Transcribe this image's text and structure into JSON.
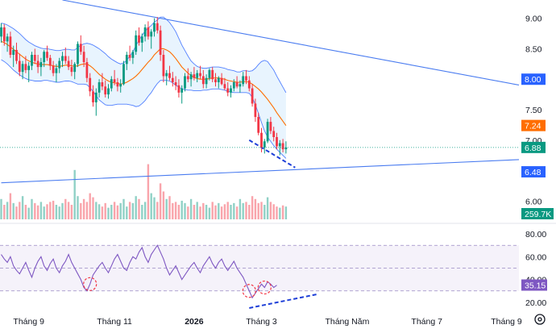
{
  "chart_data": [
    {
      "type": "candlestick",
      "pane": "price",
      "title": "",
      "y_ticks": [
        "9.00",
        "8.50",
        "8.00",
        "7.50",
        "7.00",
        "6.00"
      ],
      "y_tick_values": [
        9.0,
        8.5,
        8.0,
        7.5,
        7.0,
        6.0
      ],
      "ylim": [
        5.7,
        9.3
      ],
      "grid": false,
      "price_tags": [
        {
          "label": "8.00",
          "value": 8.0,
          "color": "#2962ff",
          "meaning": "descending trendline level"
        },
        {
          "label": "7.24",
          "value": 7.24,
          "color": "#ff6d00",
          "meaning": "moving average (basis)"
        },
        {
          "label": "6.88",
          "value": 6.88,
          "color": "#089981",
          "meaning": "last price"
        },
        {
          "label": "6.48",
          "value": 6.48,
          "color": "#2962ff",
          "meaning": "ascending trendline level"
        },
        {
          "label": "259.7K",
          "value": 259700,
          "color": "#089981",
          "meaning": "volume"
        }
      ],
      "candles_ohlc": [
        [
          8.7,
          8.92,
          8.6,
          8.85
        ],
        [
          8.85,
          8.9,
          8.55,
          8.62
        ],
        [
          8.62,
          8.75,
          8.45,
          8.7
        ],
        [
          8.7,
          8.78,
          8.35,
          8.4
        ],
        [
          8.4,
          8.55,
          8.2,
          8.48
        ],
        [
          8.48,
          8.6,
          8.25,
          8.3
        ],
        [
          8.3,
          8.42,
          8.05,
          8.12
        ],
        [
          8.12,
          8.3,
          8.0,
          8.25
        ],
        [
          8.25,
          8.38,
          8.1,
          8.15
        ],
        [
          8.15,
          8.28,
          7.95,
          8.22
        ],
        [
          8.22,
          8.45,
          8.15,
          8.4
        ],
        [
          8.4,
          8.5,
          8.25,
          8.3
        ],
        [
          8.3,
          8.4,
          8.1,
          8.2
        ],
        [
          8.2,
          8.35,
          8.05,
          8.28
        ],
        [
          8.28,
          8.48,
          8.2,
          8.45
        ],
        [
          8.45,
          8.55,
          8.3,
          8.35
        ],
        [
          8.35,
          8.4,
          8.15,
          8.22
        ],
        [
          8.22,
          8.3,
          8.05,
          8.1
        ],
        [
          8.1,
          8.25,
          7.95,
          8.18
        ],
        [
          8.18,
          8.35,
          8.1,
          8.3
        ],
        [
          8.3,
          8.45,
          8.2,
          8.38
        ],
        [
          8.38,
          8.52,
          8.25,
          8.3
        ],
        [
          8.3,
          8.38,
          8.15,
          8.2
        ],
        [
          8.2,
          8.32,
          8.05,
          8.12
        ],
        [
          8.12,
          8.28,
          8.0,
          8.25
        ],
        [
          8.25,
          8.62,
          8.2,
          8.58
        ],
        [
          8.58,
          8.72,
          8.4,
          8.45
        ],
        [
          8.45,
          8.55,
          8.2,
          8.28
        ],
        [
          8.28,
          8.35,
          7.95,
          8.02
        ],
        [
          8.02,
          8.1,
          7.72,
          7.8
        ],
        [
          7.8,
          7.9,
          7.55,
          7.62
        ],
        [
          7.62,
          7.85,
          7.4,
          7.78
        ],
        [
          7.78,
          8.0,
          7.7,
          7.95
        ],
        [
          7.95,
          8.1,
          7.82,
          7.88
        ],
        [
          7.88,
          7.98,
          7.7,
          7.75
        ],
        [
          7.75,
          7.92,
          7.68,
          7.85
        ],
        [
          7.85,
          8.05,
          7.8,
          8.0
        ],
        [
          8.0,
          8.15,
          7.9,
          7.95
        ],
        [
          7.95,
          8.02,
          7.8,
          7.88
        ],
        [
          7.88,
          8.0,
          7.78,
          7.92
        ],
        [
          7.92,
          8.3,
          7.9,
          8.25
        ],
        [
          8.25,
          8.45,
          8.15,
          8.4
        ],
        [
          8.4,
          8.55,
          8.3,
          8.35
        ],
        [
          8.35,
          8.48,
          8.25,
          8.45
        ],
        [
          8.45,
          8.8,
          8.4,
          8.72
        ],
        [
          8.72,
          8.85,
          8.55,
          8.6
        ],
        [
          8.6,
          8.75,
          8.45,
          8.7
        ],
        [
          8.7,
          8.9,
          8.62,
          8.85
        ],
        [
          8.85,
          8.95,
          8.65,
          8.7
        ],
        [
          8.7,
          8.82,
          8.5,
          8.78
        ],
        [
          8.78,
          9.0,
          8.7,
          8.92
        ],
        [
          8.92,
          9.02,
          8.75,
          8.8
        ],
        [
          8.8,
          8.88,
          8.3,
          8.4
        ],
        [
          8.4,
          8.48,
          7.95,
          8.05
        ],
        [
          8.05,
          8.15,
          7.9,
          8.1
        ],
        [
          8.1,
          8.22,
          7.98,
          8.02
        ],
        [
          8.02,
          8.12,
          7.88,
          7.95
        ],
        [
          7.95,
          8.05,
          7.82,
          7.9
        ],
        [
          7.9,
          8.0,
          7.7,
          7.78
        ],
        [
          7.78,
          7.9,
          7.6,
          7.85
        ],
        [
          7.85,
          8.1,
          7.8,
          8.05
        ],
        [
          8.05,
          8.18,
          7.95,
          8.0
        ],
        [
          8.0,
          8.12,
          7.88,
          8.08
        ],
        [
          8.08,
          8.2,
          7.98,
          8.02
        ],
        [
          8.02,
          8.15,
          7.95,
          8.1
        ],
        [
          8.1,
          8.22,
          8.0,
          8.05
        ],
        [
          8.05,
          8.15,
          7.85,
          7.92
        ],
        [
          7.92,
          8.08,
          7.85,
          8.02
        ],
        [
          8.02,
          8.18,
          7.98,
          8.15
        ],
        [
          8.15,
          8.2,
          7.95,
          8.0
        ],
        [
          8.0,
          8.1,
          7.88,
          7.95
        ],
        [
          7.95,
          8.05,
          7.85,
          8.02
        ],
        [
          8.02,
          8.1,
          7.9,
          7.92
        ],
        [
          7.92,
          8.02,
          7.82,
          7.85
        ],
        [
          7.85,
          7.95,
          7.72,
          7.78
        ],
        [
          7.78,
          7.9,
          7.7,
          7.85
        ],
        [
          7.85,
          8.0,
          7.8,
          7.95
        ],
        [
          7.95,
          8.05,
          7.85,
          7.88
        ],
        [
          7.88,
          7.98,
          7.78,
          7.92
        ],
        [
          7.92,
          8.12,
          7.88,
          8.05
        ],
        [
          8.05,
          8.15,
          7.92,
          7.98
        ],
        [
          7.98,
          8.05,
          7.8,
          7.85
        ],
        [
          7.85,
          7.92,
          7.55,
          7.6
        ],
        [
          7.6,
          7.68,
          7.3,
          7.38
        ],
        [
          7.38,
          7.45,
          7.08,
          7.12
        ],
        [
          7.12,
          7.2,
          6.8,
          6.88
        ],
        [
          6.88,
          7.02,
          6.78,
          6.98
        ],
        [
          6.98,
          7.35,
          6.95,
          7.3
        ],
        [
          7.3,
          7.38,
          7.1,
          7.15
        ],
        [
          7.15,
          7.22,
          6.98,
          7.05
        ],
        [
          7.05,
          7.12,
          6.85,
          6.9
        ],
        [
          6.9,
          7.0,
          6.75,
          6.95
        ],
        [
          6.95,
          7.02,
          6.8,
          6.85
        ],
        [
          6.85,
          6.98,
          6.78,
          6.88
        ]
      ],
      "volume_relative": [
        0.35,
        0.25,
        0.3,
        0.45,
        0.28,
        0.22,
        0.3,
        0.4,
        0.25,
        0.2,
        0.35,
        0.28,
        0.24,
        0.3,
        0.22,
        0.26,
        0.3,
        0.32,
        0.25,
        0.22,
        0.28,
        0.35,
        0.3,
        0.25,
        0.85,
        0.4,
        0.28,
        0.35,
        0.3,
        0.45,
        0.38,
        0.3,
        0.26,
        0.22,
        0.28,
        0.2,
        0.25,
        0.3,
        0.24,
        0.28,
        0.35,
        0.22,
        0.3,
        0.28,
        0.4,
        0.35,
        0.25,
        0.3,
        0.95,
        0.45,
        0.38,
        0.3,
        0.62,
        0.48,
        0.35,
        0.4,
        0.28,
        0.3,
        0.25,
        0.32,
        0.28,
        0.22,
        0.35,
        0.25,
        0.3,
        0.22,
        0.28,
        0.25,
        0.2,
        0.3,
        0.24,
        0.28,
        0.22,
        0.26,
        0.3,
        0.25,
        0.28,
        0.22,
        0.35,
        0.28,
        0.3,
        0.25,
        0.4,
        0.35,
        0.28,
        0.3,
        0.25,
        0.38,
        0.3,
        0.26,
        0.22,
        0.2,
        0.24,
        0.22
      ],
      "moving_average": [
        8.62,
        8.6,
        8.57,
        8.53,
        8.49,
        8.45,
        8.41,
        8.37,
        8.33,
        8.3,
        8.28,
        8.26,
        8.25,
        8.24,
        8.24,
        8.24,
        8.23,
        8.22,
        8.21,
        8.21,
        8.22,
        8.23,
        8.23,
        8.22,
        8.21,
        8.22,
        8.24,
        8.25,
        8.25,
        8.22,
        8.18,
        8.13,
        8.08,
        8.04,
        8.0,
        7.97,
        7.95,
        7.94,
        7.93,
        7.92,
        7.93,
        7.95,
        7.98,
        8.01,
        8.05,
        8.1,
        8.16,
        8.22,
        8.28,
        8.33,
        8.4,
        8.45,
        8.5,
        8.5,
        8.48,
        8.45,
        8.4,
        8.34,
        8.27,
        8.2,
        8.15,
        8.1,
        8.06,
        8.03,
        8.01,
        8.0,
        8.0,
        8.0,
        8.01,
        8.02,
        8.02,
        8.02,
        8.01,
        8.0,
        7.98,
        7.97,
        7.96,
        7.95,
        7.95,
        7.96,
        7.96,
        7.95,
        7.92,
        7.88,
        7.84,
        7.79,
        7.73,
        7.67,
        7.6,
        7.53,
        7.45,
        7.38,
        7.31,
        7.24
      ],
      "band_halfwidth": [
        0.3,
        0.31,
        0.32,
        0.33,
        0.34,
        0.34,
        0.34,
        0.33,
        0.32,
        0.31,
        0.3,
        0.29,
        0.28,
        0.27,
        0.26,
        0.26,
        0.26,
        0.26,
        0.26,
        0.26,
        0.26,
        0.26,
        0.26,
        0.26,
        0.27,
        0.3,
        0.32,
        0.33,
        0.34,
        0.36,
        0.38,
        0.4,
        0.42,
        0.42,
        0.42,
        0.4,
        0.38,
        0.36,
        0.34,
        0.33,
        0.34,
        0.36,
        0.4,
        0.44,
        0.5,
        0.54,
        0.56,
        0.57,
        0.56,
        0.55,
        0.54,
        0.52,
        0.52,
        0.52,
        0.5,
        0.48,
        0.46,
        0.44,
        0.4,
        0.36,
        0.32,
        0.28,
        0.24,
        0.22,
        0.2,
        0.19,
        0.18,
        0.18,
        0.18,
        0.18,
        0.18,
        0.18,
        0.18,
        0.18,
        0.18,
        0.18,
        0.18,
        0.17,
        0.17,
        0.18,
        0.18,
        0.18,
        0.22,
        0.3,
        0.4,
        0.5,
        0.58,
        0.62,
        0.62,
        0.62,
        0.6,
        0.58,
        0.56,
        0.54
      ],
      "trendlines": [
        {
          "name": "descending-resistance",
          "from": {
            "bar": 20,
            "value": 9.3
          },
          "to": {
            "bar": 240,
            "value": 7.24
          }
        },
        {
          "name": "ascending-support",
          "from": {
            "bar": 0,
            "value": 6.3
          },
          "to": {
            "bar": 240,
            "value": 6.84
          }
        },
        {
          "name": "dashed-support",
          "from": {
            "bar": 81,
            "value": 7.0
          },
          "to": {
            "bar": 96,
            "value": 6.55
          }
        }
      ]
    },
    {
      "type": "line",
      "pane": "rsi",
      "y_ticks": [
        "80.00",
        "60.00",
        "40.00",
        "20.00"
      ],
      "y_tick_values": [
        80,
        60,
        40,
        20
      ],
      "ylim": [
        15,
        85
      ],
      "bands": [
        30,
        50,
        70
      ],
      "last_value_label": "35.15",
      "last_value": 35.15,
      "values": [
        62,
        58,
        55,
        60,
        52,
        48,
        45,
        50,
        55,
        48,
        42,
        50,
        56,
        60,
        52,
        48,
        54,
        58,
        50,
        46,
        52,
        56,
        62,
        55,
        50,
        45,
        40,
        33,
        30,
        36,
        44,
        48,
        52,
        55,
        50,
        46,
        52,
        58,
        62,
        56,
        50,
        48,
        55,
        60,
        58,
        64,
        68,
        60,
        55,
        62,
        66,
        70,
        64,
        58,
        50,
        44,
        48,
        52,
        46,
        40,
        44,
        48,
        52,
        55,
        50,
        46,
        52,
        56,
        60,
        54,
        50,
        55,
        58,
        52,
        48,
        52,
        56,
        50,
        46,
        42,
        36,
        30,
        24,
        28,
        32,
        36,
        33,
        38,
        36,
        33,
        35
      ],
      "trendlines": [
        {
          "name": "rsi-rising-support",
          "from": {
            "bar": 81,
            "value": 15
          },
          "to": {
            "bar": 103,
            "value": 27
          }
        }
      ],
      "circles_at_bars": [
        29,
        81,
        86
      ]
    }
  ],
  "x_axis": {
    "labels": [
      "Tháng 9",
      "Tháng 11",
      "2026",
      "Tháng 3",
      "Tháng Năm",
      "Tháng 7",
      "Tháng 9"
    ],
    "bars": [
      9,
      37,
      63,
      85,
      113,
      139,
      165
    ],
    "bold": [
      false,
      false,
      true,
      false,
      false,
      false,
      false
    ]
  },
  "icons": {
    "settings": "gear-icon"
  }
}
